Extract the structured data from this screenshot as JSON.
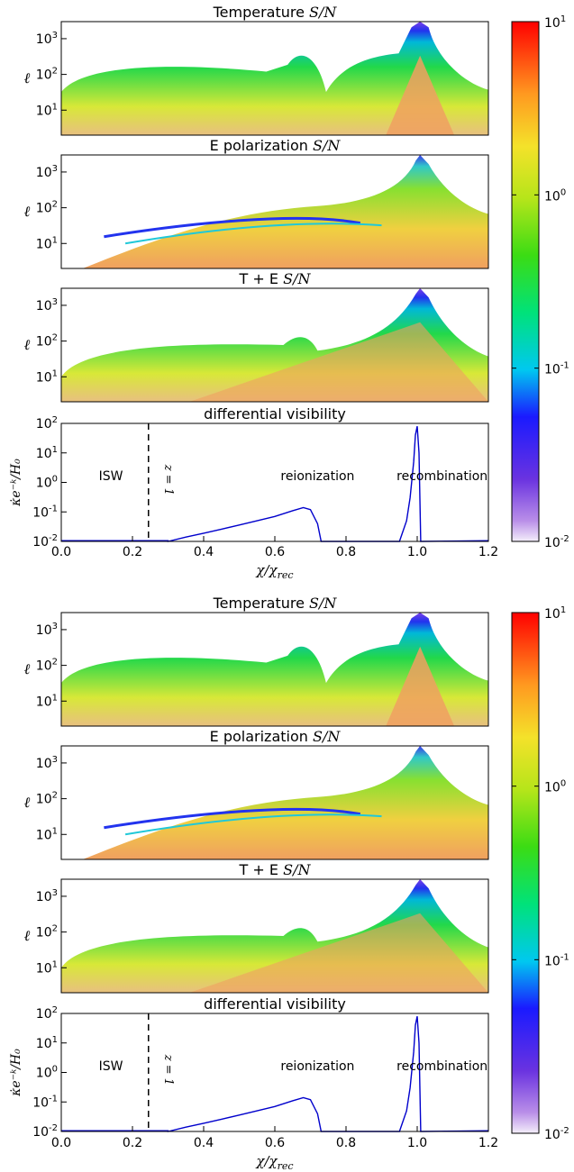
{
  "figure": {
    "blocks": [
      {
        "panels": [
          {
            "kind": "map",
            "title": "Temperature",
            "title_math": "S/N",
            "ylabel": "ℓ",
            "variant": "temperature"
          },
          {
            "kind": "map",
            "title": "E polarization",
            "title_math": "S/N",
            "ylabel": "ℓ",
            "variant": "epol"
          },
          {
            "kind": "map",
            "title": "T + E",
            "title_math": "S/N",
            "ylabel": "ℓ",
            "variant": "te"
          },
          {
            "kind": "line",
            "title": "differential visibility"
          }
        ],
        "colorbar_ticks": [
          "10",
          "10",
          "10",
          "10"
        ],
        "colorbar_exps": [
          "1",
          "0",
          "-1",
          "-2"
        ]
      },
      {
        "panels": [
          {
            "kind": "map",
            "title": "Temperature",
            "title_math": "S/N",
            "ylabel": "ℓ",
            "variant": "temperature"
          },
          {
            "kind": "map",
            "title": "E polarization",
            "title_math": "S/N",
            "ylabel": "ℓ",
            "variant": "epol"
          },
          {
            "kind": "map",
            "title": "T + E",
            "title_math": "S/N",
            "ylabel": "ℓ",
            "variant": "te"
          },
          {
            "kind": "line",
            "title": "differential visibility"
          }
        ],
        "colorbar_ticks": [
          "10",
          "10",
          "10",
          "10"
        ],
        "colorbar_exps": [
          "1",
          "0",
          "-1",
          "-2"
        ]
      }
    ],
    "map_yticks": [
      {
        "base": "10",
        "exp": "1"
      },
      {
        "base": "10",
        "exp": "2"
      },
      {
        "base": "10",
        "exp": "3"
      }
    ],
    "vis_yticks": [
      {
        "base": "10",
        "exp": "-2"
      },
      {
        "base": "10",
        "exp": "-1"
      },
      {
        "base": "10",
        "exp": "0"
      },
      {
        "base": "10",
        "exp": "1"
      },
      {
        "base": "10",
        "exp": "2"
      }
    ],
    "vis_ylabel": "κ̇e⁻ᵏ/H₀",
    "xticks": [
      "0.0",
      "0.2",
      "0.4",
      "0.6",
      "0.8",
      "1.0",
      "1.2"
    ],
    "xlabel": "χ/χrec",
    "annotations": {
      "isw": "ISW",
      "z": "z = 1",
      "reion": "reionization",
      "recomb": "recombination"
    },
    "colors": {
      "curve": "#0000cc",
      "dashed": "#000000"
    }
  },
  "chart_data": {
    "type": "line",
    "title": "differential visibility",
    "xlabel": "χ/χ_rec",
    "ylabel": "κ̇ e^{-κ} / H_0",
    "xlim": [
      0.0,
      1.2
    ],
    "ylim": [
      0.01,
      100
    ],
    "yscale": "log",
    "x": [
      0.3,
      0.35,
      0.4,
      0.45,
      0.5,
      0.55,
      0.6,
      0.65,
      0.68,
      0.7,
      0.72,
      0.73,
      0.95,
      0.97,
      0.98,
      0.99,
      0.995,
      1.0,
      1.005,
      1.01
    ],
    "series": [
      {
        "values": [
          0.01,
          0.014,
          0.019,
          0.026,
          0.036,
          0.05,
          0.07,
          0.11,
          0.14,
          0.12,
          0.04,
          0.01,
          0.01,
          0.05,
          0.3,
          5,
          40,
          80,
          10,
          0.01
        ]
      }
    ],
    "vline_x": 0.245,
    "colorbar": {
      "scale": "log",
      "range": [
        0.01,
        10
      ]
    }
  }
}
